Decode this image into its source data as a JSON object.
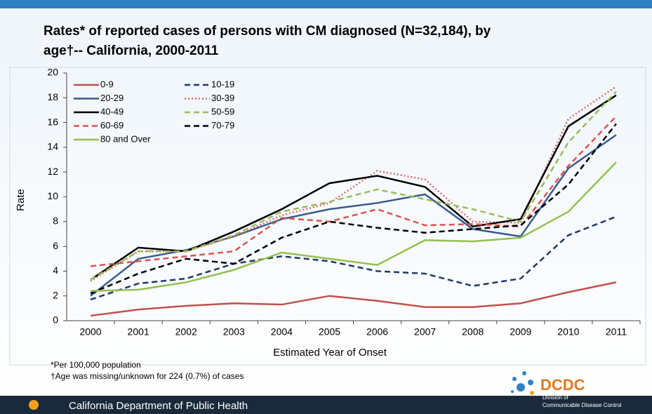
{
  "chart_data": {
    "type": "line",
    "title_lines": [
      "Rates* of reported cases of persons with CM diagnosed  (N=32,184),  by",
      "age†-- California,  2000-2011"
    ],
    "y_label": "Rate",
    "x_label": "Estimated Year of Onset",
    "categories": [
      "2000",
      "2001",
      "2002",
      "2003",
      "2004",
      "2005",
      "2006",
      "2007",
      "2008",
      "2009",
      "2010",
      "2011"
    ],
    "ylim": [
      0,
      20
    ],
    "yticks": [
      0,
      2,
      4,
      6,
      8,
      10,
      12,
      14,
      16,
      18,
      20
    ],
    "series": [
      {
        "name": "0-9",
        "color": "#c0504d",
        "dash": "solid",
        "values": [
          0.4,
          0.9,
          1.2,
          1.4,
          1.3,
          2.0,
          1.6,
          1.1,
          1.1,
          1.4,
          2.3,
          3.1
        ]
      },
      {
        "name": "10-19",
        "color": "#1f3864",
        "dash": "dashed",
        "values": [
          1.7,
          3.0,
          3.4,
          4.6,
          5.2,
          4.8,
          4.0,
          3.8,
          2.8,
          3.4,
          6.9,
          8.4
        ]
      },
      {
        "name": "20-29",
        "color": "#3a5a8c",
        "dash": "solid",
        "values": [
          2.0,
          5.0,
          5.7,
          6.8,
          8.2,
          9.0,
          9.5,
          10.2,
          7.4,
          6.8,
          12.3,
          15.0
        ]
      },
      {
        "name": "30-39",
        "color": "#e06666",
        "dash": "dotted",
        "values": [
          3.2,
          5.6,
          5.6,
          6.8,
          8.5,
          9.5,
          12.1,
          11.4,
          8.0,
          7.9,
          16.3,
          18.9
        ]
      },
      {
        "name": "40-49",
        "color": "#000000",
        "dash": "solid",
        "values": [
          3.3,
          5.9,
          5.6,
          7.2,
          9.0,
          11.1,
          11.7,
          10.8,
          7.6,
          8.2,
          15.7,
          18.2
        ]
      },
      {
        "name": "50-59",
        "color": "#9bbb59",
        "dash": "dashed",
        "values": [
          3.3,
          5.6,
          5.6,
          6.9,
          8.8,
          9.6,
          10.6,
          9.8,
          9.0,
          8.0,
          14.4,
          18.5
        ]
      },
      {
        "name": "60-69",
        "color": "#d9534f",
        "dash": "dashed",
        "values": [
          4.4,
          4.8,
          5.2,
          5.6,
          8.3,
          8.0,
          9.0,
          7.7,
          7.8,
          7.6,
          12.5,
          16.5
        ]
      },
      {
        "name": "70-79",
        "color": "#000000",
        "dash": "dashed",
        "values": [
          2.2,
          3.8,
          5.0,
          4.6,
          6.7,
          8.0,
          7.5,
          7.1,
          7.4,
          7.7,
          11.0,
          15.9
        ]
      },
      {
        "name": "80 and Over",
        "color": "#92c050",
        "dash": "solid",
        "values": [
          2.4,
          2.5,
          3.1,
          4.1,
          5.5,
          5.0,
          4.5,
          6.5,
          6.4,
          6.7,
          8.8,
          12.8
        ]
      }
    ],
    "footnotes": [
      "*Per 100,000  population",
      "†Age was missing/unknown for 224 (0.7%) of cases"
    ]
  },
  "footer": {
    "org": "California Department of Public Health",
    "logo": "DCDC",
    "logo_sub": [
      "Division of",
      "Communicable Disease Control"
    ]
  }
}
